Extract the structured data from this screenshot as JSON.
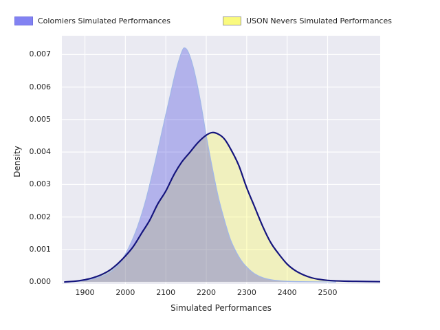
{
  "legend": {
    "items": [
      {
        "label": "Colomiers Simulated Performances",
        "swatch_fill": "#8282f2",
        "swatch_border": "#7070e0"
      },
      {
        "label": "USON Nevers Simulated Performances",
        "swatch_fill": "#fafa7e",
        "swatch_border": "#999999"
      }
    ]
  },
  "chart_data": {
    "type": "area",
    "title": "",
    "xlabel": "Simulated Performances",
    "ylabel": "Density",
    "xlim": [
      1843,
      2630
    ],
    "ylim": [
      -6e-05,
      0.00758
    ],
    "x_ticks": [
      1900,
      2000,
      2100,
      2200,
      2300,
      2400,
      2500
    ],
    "x_tick_labels": [
      "1900",
      "2000",
      "2100",
      "2200",
      "2300",
      "2400",
      "2500"
    ],
    "y_ticks": [
      0,
      0.001,
      0.002,
      0.003,
      0.004,
      0.005,
      0.006,
      0.007
    ],
    "y_tick_labels": [
      "0.000",
      "0.001",
      "0.002",
      "0.003",
      "0.004",
      "0.005",
      "0.006",
      "0.007"
    ],
    "grid": true,
    "legend_position": "top",
    "plot_background": "#eaeaf2",
    "grid_color": "#ffffff",
    "series": [
      {
        "name": "Colomiers Simulated Performances",
        "peak_x": 2145,
        "peak_density": 0.0072,
        "fill": "rgba(50,50,220,0.30)",
        "stroke": "#a2b7e8",
        "stroke_width": 1.3,
        "fill_z": 2,
        "stroke_z": 3,
        "points": [
          [
            1850,
            0
          ],
          [
            1870,
            1e-05
          ],
          [
            1890,
            3e-05
          ],
          [
            1910,
            7e-05
          ],
          [
            1930,
            0.00013
          ],
          [
            1950,
            0.00022
          ],
          [
            1970,
            0.00038
          ],
          [
            1990,
            0.00065
          ],
          [
            2010,
            0.0011
          ],
          [
            2030,
            0.0017
          ],
          [
            2050,
            0.0025
          ],
          [
            2070,
            0.0035
          ],
          [
            2090,
            0.0046
          ],
          [
            2110,
            0.0057
          ],
          [
            2125,
            0.0065
          ],
          [
            2140,
            0.0071
          ],
          [
            2148,
            0.0072
          ],
          [
            2158,
            0.007
          ],
          [
            2170,
            0.0065
          ],
          [
            2185,
            0.0056
          ],
          [
            2200,
            0.0045
          ],
          [
            2215,
            0.0035
          ],
          [
            2230,
            0.0026
          ],
          [
            2245,
            0.0019
          ],
          [
            2260,
            0.0013
          ],
          [
            2275,
            0.0009
          ],
          [
            2290,
            0.0006
          ],
          [
            2305,
            0.0004
          ],
          [
            2320,
            0.00025
          ],
          [
            2340,
            0.00013
          ],
          [
            2360,
            7e-05
          ],
          [
            2380,
            4e-05
          ],
          [
            2400,
            2e-05
          ],
          [
            2430,
            1e-05
          ],
          [
            2470,
            5e-06
          ],
          [
            2520,
            0
          ]
        ]
      },
      {
        "name": "USON Nevers Simulated Performances",
        "peak_x": 2215,
        "peak_density": 0.0046,
        "fill": "rgba(255,255,70,0.30)",
        "stroke": "#15157d",
        "stroke_width": 2.2,
        "fill_z": 1,
        "stroke_z": 4,
        "points": [
          [
            1850,
            0
          ],
          [
            1880,
            3e-05
          ],
          [
            1900,
            7e-05
          ],
          [
            1920,
            0.00013
          ],
          [
            1940,
            0.00022
          ],
          [
            1960,
            0.00035
          ],
          [
            1980,
            0.00055
          ],
          [
            2000,
            0.0008
          ],
          [
            2020,
            0.0011
          ],
          [
            2040,
            0.0015
          ],
          [
            2060,
            0.0019
          ],
          [
            2080,
            0.0024
          ],
          [
            2100,
            0.0028
          ],
          [
            2120,
            0.0033
          ],
          [
            2140,
            0.0037
          ],
          [
            2160,
            0.004
          ],
          [
            2180,
            0.0043
          ],
          [
            2200,
            0.00452
          ],
          [
            2215,
            0.0046
          ],
          [
            2230,
            0.00455
          ],
          [
            2245,
            0.0044
          ],
          [
            2260,
            0.0041
          ],
          [
            2280,
            0.0036
          ],
          [
            2300,
            0.0029
          ],
          [
            2320,
            0.0023
          ],
          [
            2340,
            0.0017
          ],
          [
            2360,
            0.0012
          ],
          [
            2380,
            0.00085
          ],
          [
            2400,
            0.00055
          ],
          [
            2420,
            0.00035
          ],
          [
            2440,
            0.00022
          ],
          [
            2460,
            0.00013
          ],
          [
            2480,
            8e-05
          ],
          [
            2500,
            5e-05
          ],
          [
            2530,
            3e-05
          ],
          [
            2570,
            2e-05
          ],
          [
            2630,
            1e-05
          ]
        ]
      }
    ]
  }
}
